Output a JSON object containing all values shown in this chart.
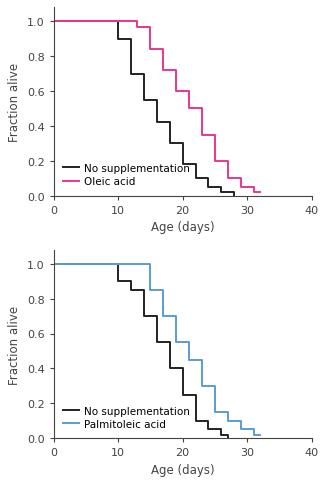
{
  "top_chart": {
    "black_x": [
      0,
      10,
      10,
      12,
      12,
      14,
      14,
      16,
      16,
      18,
      18,
      20,
      20,
      22,
      22,
      24,
      24,
      26,
      26,
      28,
      28
    ],
    "black_y": [
      1.0,
      1.0,
      0.9,
      0.9,
      0.7,
      0.7,
      0.55,
      0.55,
      0.42,
      0.42,
      0.3,
      0.3,
      0.18,
      0.18,
      0.1,
      0.1,
      0.05,
      0.05,
      0.02,
      0.02,
      0.0
    ],
    "pink_x": [
      0,
      13,
      13,
      15,
      15,
      17,
      17,
      19,
      19,
      21,
      21,
      23,
      23,
      25,
      25,
      27,
      27,
      29,
      29,
      31,
      31,
      32
    ],
    "pink_y": [
      1.0,
      1.0,
      0.97,
      0.97,
      0.84,
      0.84,
      0.72,
      0.72,
      0.6,
      0.6,
      0.5,
      0.5,
      0.35,
      0.35,
      0.2,
      0.2,
      0.1,
      0.1,
      0.05,
      0.05,
      0.02,
      0.02
    ],
    "black_color": "#222222",
    "pink_color": "#e8368f",
    "ylabel": "Fraction alive",
    "xlabel": "Age (days)",
    "legend_black": "No supplementation",
    "legend_pink": "Oleic acid",
    "xlim": [
      0,
      40
    ],
    "ylim": [
      0,
      1.08
    ],
    "xticks": [
      0,
      10,
      20,
      30,
      40
    ],
    "yticks": [
      0,
      0.2,
      0.4,
      0.6,
      0.8,
      1.0
    ]
  },
  "bottom_chart": {
    "black_x": [
      0,
      10,
      10,
      12,
      12,
      14,
      14,
      16,
      16,
      18,
      18,
      20,
      20,
      22,
      22,
      24,
      24,
      26,
      26,
      27,
      27
    ],
    "black_y": [
      1.0,
      1.0,
      0.9,
      0.9,
      0.85,
      0.85,
      0.7,
      0.7,
      0.55,
      0.55,
      0.4,
      0.4,
      0.25,
      0.25,
      0.1,
      0.1,
      0.05,
      0.05,
      0.02,
      0.02,
      0.0
    ],
    "blue_x": [
      0,
      13,
      13,
      15,
      15,
      17,
      17,
      19,
      19,
      21,
      21,
      23,
      23,
      25,
      25,
      27,
      27,
      29,
      29,
      31,
      31,
      32
    ],
    "blue_y": [
      1.0,
      1.0,
      1.0,
      1.0,
      0.85,
      0.85,
      0.7,
      0.7,
      0.55,
      0.55,
      0.45,
      0.45,
      0.3,
      0.3,
      0.15,
      0.15,
      0.1,
      0.1,
      0.05,
      0.05,
      0.02,
      0.02
    ],
    "black_color": "#222222",
    "blue_color": "#5b9bd5",
    "ylabel": "Fraction alive",
    "xlabel": "Age (days)",
    "legend_black": "No supplementation",
    "legend_blue": "Palmitoleic acid",
    "xlim": [
      0,
      40
    ],
    "ylim": [
      0,
      1.08
    ],
    "xticks": [
      0,
      10,
      20,
      30,
      40
    ],
    "yticks": [
      0,
      0.2,
      0.4,
      0.6,
      0.8,
      1.0
    ]
  },
  "axis_color": "#444444",
  "tick_color": "#444444",
  "label_color": "#444444",
  "legend_fontsize": 7.5,
  "axis_fontsize": 8.5,
  "tick_fontsize": 8,
  "linewidth": 1.4
}
